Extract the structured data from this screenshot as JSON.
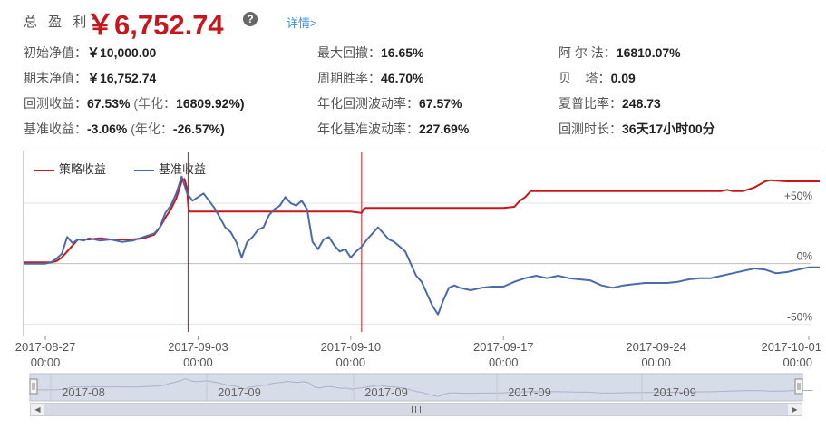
{
  "summary": {
    "total_label": "总 盈 利：",
    "total_value": "￥6,752.74",
    "help_icon": "question-circle-icon",
    "detail_link": "详情>",
    "rows": [
      [
        {
          "key": "初始净值：",
          "value": "￥10,000.00"
        },
        {
          "key": "最大回撤：",
          "value": "16.65%"
        },
        {
          "key": "阿 尔 法：",
          "value": "16810.07%"
        }
      ],
      [
        {
          "key": "期末净值：",
          "value": "￥16,752.74"
        },
        {
          "key": "周期胜率：",
          "value": "46.70%"
        },
        {
          "key": "贝    塔：",
          "value": "0.09"
        }
      ],
      [
        {
          "key": "回测收益：",
          "value": "67.53%",
          "note": "(年化：",
          "note_value": "16809.92%)"
        },
        {
          "key": "年化回测波动率：",
          "value": "67.57%"
        },
        {
          "key": "夏普比率：",
          "value": "248.73"
        }
      ],
      [
        {
          "key": "基准收益：",
          "value": "-3.06%",
          "note": "(年化：",
          "note_value": "-26.57%)"
        },
        {
          "key": "年化基准波动率：",
          "value": "227.69%"
        },
        {
          "key": "回测时长：",
          "value": "36天17小时00分"
        }
      ]
    ]
  },
  "chart_data": {
    "type": "line",
    "title": "",
    "xlabel": "",
    "ylabel": "",
    "grid": true,
    "legend_position": "top-left",
    "ylim": [
      -58,
      92
    ],
    "xlim": [
      "2017-08-26",
      "2017-10-01"
    ],
    "y_ticks": [
      {
        "value": 50,
        "label": "+50%"
      },
      {
        "value": 0,
        "label": "0%"
      },
      {
        "value": -50,
        "label": "-50%"
      }
    ],
    "x_ticks": [
      {
        "value": "2017-08-27",
        "label_top": "2017-08-27",
        "label_bottom": "00:00"
      },
      {
        "value": "2017-09-03",
        "label_top": "2017-09-03",
        "label_bottom": "00:00"
      },
      {
        "value": "2017-09-10",
        "label_top": "2017-09-10",
        "label_bottom": "00:00"
      },
      {
        "value": "2017-09-17",
        "label_top": "2017-09-17",
        "label_bottom": "00:00"
      },
      {
        "value": "2017-09-24",
        "label_top": "2017-09-24",
        "label_bottom": "00:00"
      },
      {
        "value": "2017-10-01",
        "label_top": "2017-10-01",
        "label_bottom": "00:00"
      }
    ],
    "markers": [
      "2017-09-02 13:00",
      "2017-09-10 12:00"
    ],
    "series": [
      {
        "name": "策略收益",
        "color": "#c8161d",
        "points": [
          [
            "2017-08-26 00:00",
            1
          ],
          [
            "2017-08-27 06:00",
            1
          ],
          [
            "2017-08-27 12:00",
            2
          ],
          [
            "2017-08-27 18:00",
            5
          ],
          [
            "2017-08-28 00:00",
            10
          ],
          [
            "2017-08-28 12:00",
            20
          ],
          [
            "2017-08-29 00:00",
            20
          ],
          [
            "2017-08-29 12:00",
            21
          ],
          [
            "2017-08-30 00:00",
            20
          ],
          [
            "2017-08-30 12:00",
            20
          ],
          [
            "2017-08-31 00:00",
            20
          ],
          [
            "2017-08-31 12:00",
            21
          ],
          [
            "2017-09-01 00:00",
            24
          ],
          [
            "2017-09-01 06:00",
            30
          ],
          [
            "2017-09-01 12:00",
            38
          ],
          [
            "2017-09-01 18:00",
            45
          ],
          [
            "2017-09-02 00:00",
            54
          ],
          [
            "2017-09-02 06:00",
            68
          ],
          [
            "2017-09-02 09:00",
            70
          ],
          [
            "2017-09-02 12:00",
            62
          ],
          [
            "2017-09-02 13:00",
            50
          ],
          [
            "2017-09-02 14:00",
            43
          ],
          [
            "2017-09-03 00:00",
            43
          ],
          [
            "2017-09-05 00:00",
            43
          ],
          [
            "2017-09-07 00:00",
            43
          ],
          [
            "2017-09-09 00:00",
            43
          ],
          [
            "2017-09-10 00:00",
            43
          ],
          [
            "2017-09-10 12:00",
            42
          ],
          [
            "2017-09-10 14:00",
            45
          ],
          [
            "2017-09-10 16:00",
            46
          ],
          [
            "2017-09-11 00:00",
            46
          ],
          [
            "2017-09-13 00:00",
            46
          ],
          [
            "2017-09-15 00:00",
            46
          ],
          [
            "2017-09-17 00:00",
            46
          ],
          [
            "2017-09-17 12:00",
            47
          ],
          [
            "2017-09-17 18:00",
            52
          ],
          [
            "2017-09-18 00:00",
            55
          ],
          [
            "2017-09-18 06:00",
            60
          ],
          [
            "2017-09-19 00:00",
            60
          ],
          [
            "2017-09-21 00:00",
            60
          ],
          [
            "2017-09-23 00:00",
            60
          ],
          [
            "2017-09-25 00:00",
            60
          ],
          [
            "2017-09-27 00:00",
            60
          ],
          [
            "2017-09-27 06:00",
            61
          ],
          [
            "2017-09-27 12:00",
            60
          ],
          [
            "2017-09-28 00:00",
            60
          ],
          [
            "2017-09-28 12:00",
            63
          ],
          [
            "2017-09-29 00:00",
            68
          ],
          [
            "2017-09-29 06:00",
            69
          ],
          [
            "2017-09-30 00:00",
            68
          ],
          [
            "2017-10-01 00:00",
            68
          ],
          [
            "2017-10-01 12:00",
            68
          ]
        ]
      },
      {
        "name": "基准收益",
        "color": "#4a6baa",
        "points": [
          [
            "2017-08-26 00:00",
            0
          ],
          [
            "2017-08-26 12:00",
            0
          ],
          [
            "2017-08-27 00:00",
            0
          ],
          [
            "2017-08-27 06:00",
            1
          ],
          [
            "2017-08-27 12:00",
            4
          ],
          [
            "2017-08-27 18:00",
            8
          ],
          [
            "2017-08-28 00:00",
            22
          ],
          [
            "2017-08-28 06:00",
            17
          ],
          [
            "2017-08-28 12:00",
            20
          ],
          [
            "2017-08-28 18:00",
            19
          ],
          [
            "2017-08-29 00:00",
            21
          ],
          [
            "2017-08-29 12:00",
            19
          ],
          [
            "2017-08-30 00:00",
            20
          ],
          [
            "2017-08-30 12:00",
            18
          ],
          [
            "2017-08-31 00:00",
            19
          ],
          [
            "2017-08-31 12:00",
            22
          ],
          [
            "2017-09-01 00:00",
            25
          ],
          [
            "2017-09-01 06:00",
            30
          ],
          [
            "2017-09-01 12:00",
            42
          ],
          [
            "2017-09-01 18:00",
            48
          ],
          [
            "2017-09-02 00:00",
            58
          ],
          [
            "2017-09-02 06:00",
            72
          ],
          [
            "2017-09-02 09:00",
            65
          ],
          [
            "2017-09-02 12:00",
            58
          ],
          [
            "2017-09-02 18:00",
            52
          ],
          [
            "2017-09-03 00:00",
            55
          ],
          [
            "2017-09-03 06:00",
            58
          ],
          [
            "2017-09-03 12:00",
            52
          ],
          [
            "2017-09-03 18:00",
            46
          ],
          [
            "2017-09-04 00:00",
            38
          ],
          [
            "2017-09-04 06:00",
            30
          ],
          [
            "2017-09-04 12:00",
            26
          ],
          [
            "2017-09-04 18:00",
            18
          ],
          [
            "2017-09-05 00:00",
            5
          ],
          [
            "2017-09-05 06:00",
            18
          ],
          [
            "2017-09-05 12:00",
            22
          ],
          [
            "2017-09-05 18:00",
            28
          ],
          [
            "2017-09-06 00:00",
            30
          ],
          [
            "2017-09-06 06:00",
            40
          ],
          [
            "2017-09-06 12:00",
            45
          ],
          [
            "2017-09-06 18:00",
            48
          ],
          [
            "2017-09-07 00:00",
            55
          ],
          [
            "2017-09-07 06:00",
            50
          ],
          [
            "2017-09-07 12:00",
            48
          ],
          [
            "2017-09-07 18:00",
            52
          ],
          [
            "2017-09-08 00:00",
            45
          ],
          [
            "2017-09-08 06:00",
            18
          ],
          [
            "2017-09-08 12:00",
            12
          ],
          [
            "2017-09-08 18:00",
            20
          ],
          [
            "2017-09-09 00:00",
            22
          ],
          [
            "2017-09-09 06:00",
            15
          ],
          [
            "2017-09-09 12:00",
            10
          ],
          [
            "2017-09-09 18:00",
            12
          ],
          [
            "2017-09-10 00:00",
            5
          ],
          [
            "2017-09-10 06:00",
            10
          ],
          [
            "2017-09-10 12:00",
            14
          ],
          [
            "2017-09-10 18:00",
            20
          ],
          [
            "2017-09-11 00:00",
            25
          ],
          [
            "2017-09-11 06:00",
            30
          ],
          [
            "2017-09-11 12:00",
            25
          ],
          [
            "2017-09-11 18:00",
            20
          ],
          [
            "2017-09-12 00:00",
            18
          ],
          [
            "2017-09-12 12:00",
            10
          ],
          [
            "2017-09-13 00:00",
            -10
          ],
          [
            "2017-09-13 06:00",
            -15
          ],
          [
            "2017-09-13 12:00",
            -25
          ],
          [
            "2017-09-13 18:00",
            -35
          ],
          [
            "2017-09-14 00:00",
            -42
          ],
          [
            "2017-09-14 06:00",
            -30
          ],
          [
            "2017-09-14 12:00",
            -20
          ],
          [
            "2017-09-14 18:00",
            -18
          ],
          [
            "2017-09-15 00:00",
            -20
          ],
          [
            "2017-09-15 12:00",
            -22
          ],
          [
            "2017-09-16 00:00",
            -20
          ],
          [
            "2017-09-16 12:00",
            -19
          ],
          [
            "2017-09-17 00:00",
            -19
          ],
          [
            "2017-09-17 12:00",
            -15
          ],
          [
            "2017-09-18 00:00",
            -12
          ],
          [
            "2017-09-18 12:00",
            -10
          ],
          [
            "2017-09-19 00:00",
            -12
          ],
          [
            "2017-09-19 12:00",
            -10
          ],
          [
            "2017-09-20 00:00",
            -12
          ],
          [
            "2017-09-20 12:00",
            -13
          ],
          [
            "2017-09-21 00:00",
            -14
          ],
          [
            "2017-09-21 12:00",
            -18
          ],
          [
            "2017-09-22 00:00",
            -20
          ],
          [
            "2017-09-22 12:00",
            -18
          ],
          [
            "2017-09-23 00:00",
            -17
          ],
          [
            "2017-09-23 12:00",
            -16
          ],
          [
            "2017-09-24 00:00",
            -16
          ],
          [
            "2017-09-24 12:00",
            -16
          ],
          [
            "2017-09-25 00:00",
            -15
          ],
          [
            "2017-09-25 12:00",
            -13
          ],
          [
            "2017-09-26 00:00",
            -12
          ],
          [
            "2017-09-26 12:00",
            -12
          ],
          [
            "2017-09-27 00:00",
            -10
          ],
          [
            "2017-09-27 12:00",
            -8
          ],
          [
            "2017-09-28 00:00",
            -6
          ],
          [
            "2017-09-28 12:00",
            -4
          ],
          [
            "2017-09-29 00:00",
            -5
          ],
          [
            "2017-09-29 12:00",
            -8
          ],
          [
            "2017-09-30 00:00",
            -7
          ],
          [
            "2017-09-30 12:00",
            -5
          ],
          [
            "2017-10-01 00:00",
            -3
          ],
          [
            "2017-10-01 12:00",
            -3
          ]
        ]
      }
    ]
  },
  "navigator": {
    "labels": [
      "2017-08",
      "2017-09",
      "2017-09",
      "2017-09",
      "2017-09"
    ],
    "left_arrow_icon": "triangle-left-icon",
    "right_arrow_icon": "triangle-right-icon",
    "grip_icon": "grip-lines-icon"
  }
}
